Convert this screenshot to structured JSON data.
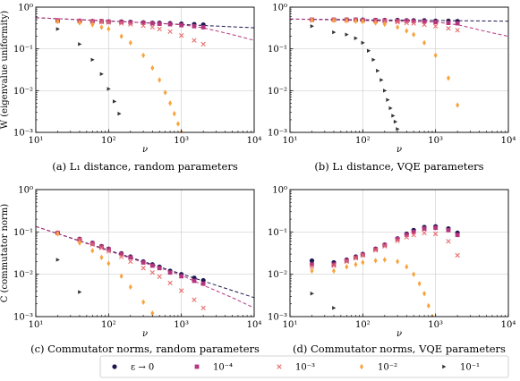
{
  "series_styles": [
    {
      "key": "eps0",
      "marker": "circle",
      "color": "#1c1850"
    },
    {
      "key": "em4",
      "marker": "square",
      "color": "#b5357f"
    },
    {
      "key": "em3",
      "marker": "x",
      "color": "#e8706f"
    },
    {
      "key": "em2",
      "marker": "diamond",
      "color": "#f7a43d"
    },
    {
      "key": "em1",
      "marker": "triangle",
      "color": "#333333"
    }
  ],
  "fit_colors": {
    "navy": "#1c1850",
    "magenta": "#b5357f"
  },
  "legend": {
    "entries": [
      {
        "key": "eps0",
        "label": "ε → 0"
      },
      {
        "key": "em4",
        "label": "10⁻⁴"
      },
      {
        "key": "em3",
        "label": "10⁻³"
      },
      {
        "key": "em2",
        "label": "10⁻²"
      },
      {
        "key": "em1",
        "label": "10⁻¹"
      }
    ]
  },
  "chart_data": [
    {
      "type": "scatter",
      "id": "a",
      "caption": "(a) L₁ distance, random parameters",
      "xlabel": "ν",
      "ylabel": "W (eigenvalue uniformity)",
      "xscale": "log",
      "yscale": "log",
      "xlim": [
        10,
        10000
      ],
      "ylim": [
        0.001,
        1
      ],
      "xticks": [
        {
          "v": 10,
          "label": "10¹"
        },
        {
          "v": 100,
          "label": "10²"
        },
        {
          "v": 1000,
          "label": "10³"
        },
        {
          "v": 10000,
          "label": "10⁴"
        }
      ],
      "yticks": [
        {
          "v": 0.001,
          "label": "10⁻³"
        },
        {
          "v": 0.01,
          "label": "10⁻²"
        },
        {
          "v": 0.1,
          "label": "10⁻¹"
        },
        {
          "v": 1,
          "label": "10⁰"
        }
      ],
      "grid": true,
      "series": [
        {
          "key": "eps0",
          "x": [
            20,
            40,
            60,
            80,
            100,
            150,
            200,
            300,
            400,
            500,
            700,
            1000,
            1500,
            2000
          ],
          "y": [
            0.48,
            0.47,
            0.46,
            0.46,
            0.45,
            0.45,
            0.44,
            0.43,
            0.42,
            0.42,
            0.41,
            0.4,
            0.39,
            0.38
          ]
        },
        {
          "key": "em4",
          "x": [
            20,
            40,
            60,
            80,
            100,
            150,
            200,
            300,
            400,
            500,
            700,
            1000,
            1500,
            2000
          ],
          "y": [
            0.48,
            0.47,
            0.46,
            0.46,
            0.45,
            0.44,
            0.43,
            0.42,
            0.41,
            0.4,
            0.39,
            0.37,
            0.35,
            0.33
          ]
        },
        {
          "key": "em3",
          "x": [
            20,
            40,
            60,
            80,
            100,
            150,
            200,
            300,
            400,
            500,
            700,
            1000,
            1500,
            2000
          ],
          "y": [
            0.47,
            0.46,
            0.45,
            0.44,
            0.43,
            0.41,
            0.39,
            0.36,
            0.33,
            0.3,
            0.26,
            0.21,
            0.16,
            0.13
          ]
        },
        {
          "key": "em2",
          "x": [
            20,
            40,
            60,
            80,
            100,
            150,
            200,
            300,
            400,
            500,
            600,
            700,
            800,
            900,
            1000
          ],
          "y": [
            0.45,
            0.42,
            0.38,
            0.33,
            0.3,
            0.2,
            0.14,
            0.07,
            0.035,
            0.018,
            0.009,
            0.005,
            0.0028,
            0.0016,
            0.001
          ]
        },
        {
          "key": "em1",
          "x": [
            20,
            40,
            60,
            80,
            100,
            120,
            140
          ],
          "y": [
            0.3,
            0.13,
            0.055,
            0.025,
            0.011,
            0.0055,
            0.0028
          ]
        }
      ],
      "fits": [
        {
          "color": "navy",
          "x": [
            10,
            10000
          ],
          "y": [
            0.56,
            0.32
          ]
        },
        {
          "color": "magenta",
          "x": [
            10,
            100,
            1000,
            2000,
            5000,
            10000
          ],
          "y": [
            0.56,
            0.47,
            0.38,
            0.32,
            0.22,
            0.16
          ]
        }
      ]
    },
    {
      "type": "scatter",
      "id": "b",
      "caption": "(b) L₁ distance, VQE parameters",
      "xlabel": "ν",
      "ylabel": "",
      "xscale": "log",
      "yscale": "log",
      "xlim": [
        10,
        10000
      ],
      "ylim": [
        0.001,
        1
      ],
      "xticks": [
        {
          "v": 10,
          "label": "10¹"
        },
        {
          "v": 100,
          "label": "10²"
        },
        {
          "v": 1000,
          "label": "10³"
        },
        {
          "v": 10000,
          "label": "10⁴"
        }
      ],
      "yticks": [
        {
          "v": 0.001,
          "label": "10⁻³"
        },
        {
          "v": 0.01,
          "label": "10⁻²"
        },
        {
          "v": 0.1,
          "label": "10⁻¹"
        },
        {
          "v": 1,
          "label": "10⁰"
        }
      ],
      "grid": true,
      "series": [
        {
          "key": "eps0",
          "x": [
            20,
            40,
            60,
            80,
            100,
            150,
            200,
            300,
            400,
            500,
            700,
            1000,
            1500,
            2000
          ],
          "y": [
            0.5,
            0.5,
            0.5,
            0.5,
            0.5,
            0.49,
            0.49,
            0.49,
            0.48,
            0.48,
            0.48,
            0.47,
            0.47,
            0.46
          ]
        },
        {
          "key": "em4",
          "x": [
            20,
            40,
            60,
            80,
            100,
            150,
            200,
            300,
            400,
            500,
            700,
            1000,
            1500,
            2000
          ],
          "y": [
            0.5,
            0.5,
            0.5,
            0.5,
            0.49,
            0.49,
            0.48,
            0.47,
            0.47,
            0.46,
            0.45,
            0.44,
            0.42,
            0.41
          ]
        },
        {
          "key": "em3",
          "x": [
            20,
            40,
            60,
            80,
            100,
            150,
            200,
            300,
            400,
            500,
            700,
            1000,
            1500,
            2000
          ],
          "y": [
            0.5,
            0.5,
            0.49,
            0.49,
            0.48,
            0.47,
            0.46,
            0.44,
            0.42,
            0.41,
            0.38,
            0.35,
            0.31,
            0.28
          ]
        },
        {
          "key": "em2",
          "x": [
            20,
            40,
            60,
            80,
            100,
            150,
            200,
            300,
            400,
            500,
            700,
            1000,
            1500,
            2000
          ],
          "y": [
            0.49,
            0.48,
            0.47,
            0.46,
            0.45,
            0.42,
            0.39,
            0.33,
            0.27,
            0.22,
            0.14,
            0.07,
            0.02,
            0.0045
          ]
        },
        {
          "key": "em1",
          "x": [
            20,
            40,
            60,
            80,
            100,
            120,
            140,
            160,
            180,
            200,
            220,
            240,
            260,
            280,
            300
          ],
          "y": [
            0.35,
            0.25,
            0.22,
            0.18,
            0.14,
            0.09,
            0.055,
            0.03,
            0.018,
            0.01,
            0.006,
            0.0038,
            0.0025,
            0.0018,
            0.0012
          ]
        }
      ],
      "fits": [
        {
          "color": "navy",
          "x": [
            10,
            10000
          ],
          "y": [
            0.52,
            0.46
          ]
        },
        {
          "color": "magenta",
          "x": [
            10,
            1000,
            2000,
            5000,
            10000
          ],
          "y": [
            0.52,
            0.44,
            0.38,
            0.26,
            0.2
          ]
        }
      ]
    },
    {
      "type": "scatter",
      "id": "c",
      "caption": "(c) Commutator norms, random parameters",
      "xlabel": "ν",
      "ylabel": "C (commutator norm)",
      "xscale": "log",
      "yscale": "log",
      "xlim": [
        10,
        10000
      ],
      "ylim": [
        0.001,
        1
      ],
      "xticks": [
        {
          "v": 10,
          "label": "10¹"
        },
        {
          "v": 100,
          "label": "10²"
        },
        {
          "v": 1000,
          "label": "10³"
        },
        {
          "v": 10000,
          "label": "10⁴"
        }
      ],
      "yticks": [
        {
          "v": 0.001,
          "label": "10⁻³"
        },
        {
          "v": 0.01,
          "label": "10⁻²"
        },
        {
          "v": 0.1,
          "label": "10⁻¹"
        },
        {
          "v": 1,
          "label": "10⁰"
        }
      ],
      "grid": true,
      "series": [
        {
          "key": "eps0",
          "x": [
            20,
            40,
            60,
            80,
            100,
            150,
            200,
            300,
            400,
            500,
            700,
            1000,
            1500,
            2000
          ],
          "y": [
            0.095,
            0.068,
            0.055,
            0.046,
            0.04,
            0.031,
            0.026,
            0.02,
            0.017,
            0.015,
            0.012,
            0.01,
            0.0082,
            0.0072
          ]
        },
        {
          "key": "em4",
          "x": [
            20,
            40,
            60,
            80,
            100,
            150,
            200,
            300,
            400,
            500,
            700,
            1000,
            1500,
            2000
          ],
          "y": [
            0.095,
            0.067,
            0.054,
            0.045,
            0.039,
            0.03,
            0.025,
            0.019,
            0.016,
            0.014,
            0.011,
            0.009,
            0.007,
            0.006
          ]
        },
        {
          "key": "em3",
          "x": [
            20,
            40,
            60,
            80,
            100,
            150,
            200,
            300,
            400,
            500,
            700,
            1000,
            1500,
            2000
          ],
          "y": [
            0.094,
            0.065,
            0.051,
            0.042,
            0.035,
            0.026,
            0.02,
            0.014,
            0.011,
            0.0088,
            0.0062,
            0.0041,
            0.0025,
            0.0016
          ]
        },
        {
          "key": "em2",
          "x": [
            20,
            40,
            60,
            80,
            100,
            150,
            200,
            300,
            400,
            500
          ],
          "y": [
            0.09,
            0.055,
            0.036,
            0.025,
            0.018,
            0.009,
            0.005,
            0.0022,
            0.0012,
            0.0008
          ]
        },
        {
          "key": "em1",
          "x": [
            20,
            40
          ],
          "y": [
            0.022,
            0.0038
          ]
        }
      ],
      "fits": [
        {
          "color": "navy",
          "x": [
            10,
            10000
          ],
          "y": [
            0.135,
            0.0028
          ]
        },
        {
          "color": "magenta",
          "x": [
            10,
            1000,
            2000,
            5000,
            10000
          ],
          "y": [
            0.135,
            0.0095,
            0.0055,
            0.0028,
            0.0016
          ]
        }
      ]
    },
    {
      "type": "scatter",
      "id": "d",
      "caption": "(d) Commutator norms, VQE parameters",
      "xlabel": "ν",
      "ylabel": "",
      "xscale": "log",
      "yscale": "log",
      "xlim": [
        10,
        10000
      ],
      "ylim": [
        0.001,
        1
      ],
      "xticks": [
        {
          "v": 10,
          "label": "10¹"
        },
        {
          "v": 100,
          "label": "10²"
        },
        {
          "v": 1000,
          "label": "10³"
        },
        {
          "v": 10000,
          "label": "10⁴"
        }
      ],
      "yticks": [
        {
          "v": 0.001,
          "label": "10⁻³"
        },
        {
          "v": 0.01,
          "label": "10⁻²"
        },
        {
          "v": 0.1,
          "label": "10⁻¹"
        },
        {
          "v": 1,
          "label": "10⁰"
        }
      ],
      "grid": true,
      "series": [
        {
          "key": "eps0",
          "x": [
            20,
            40,
            60,
            80,
            100,
            150,
            200,
            300,
            400,
            500,
            700,
            1000,
            1500,
            2000
          ],
          "y": [
            0.021,
            0.019,
            0.022,
            0.026,
            0.03,
            0.04,
            0.05,
            0.07,
            0.09,
            0.11,
            0.13,
            0.135,
            0.12,
            0.095
          ]
        },
        {
          "key": "em4",
          "x": [
            20,
            40,
            60,
            80,
            100,
            150,
            200,
            300,
            400,
            500,
            700,
            1000,
            1500,
            2000
          ],
          "y": [
            0.017,
            0.017,
            0.021,
            0.025,
            0.029,
            0.039,
            0.049,
            0.068,
            0.085,
            0.1,
            0.12,
            0.125,
            0.11,
            0.085
          ]
        },
        {
          "key": "em3",
          "x": [
            20,
            40,
            60,
            80,
            100,
            150,
            200,
            300,
            400,
            500,
            700,
            1000,
            1500,
            2000
          ],
          "y": [
            0.015,
            0.016,
            0.02,
            0.024,
            0.028,
            0.037,
            0.046,
            0.062,
            0.075,
            0.085,
            0.095,
            0.09,
            0.06,
            0.028
          ]
        },
        {
          "key": "em2",
          "x": [
            20,
            40,
            60,
            80,
            100,
            150,
            200,
            300,
            400,
            500,
            600,
            700,
            800,
            900
          ],
          "y": [
            0.012,
            0.012,
            0.015,
            0.017,
            0.019,
            0.021,
            0.022,
            0.02,
            0.015,
            0.01,
            0.006,
            0.0035,
            0.0018,
            0.001
          ]
        },
        {
          "key": "em1",
          "x": [
            20,
            40
          ],
          "y": [
            0.0035,
            0.0016
          ]
        }
      ],
      "fits": []
    }
  ]
}
